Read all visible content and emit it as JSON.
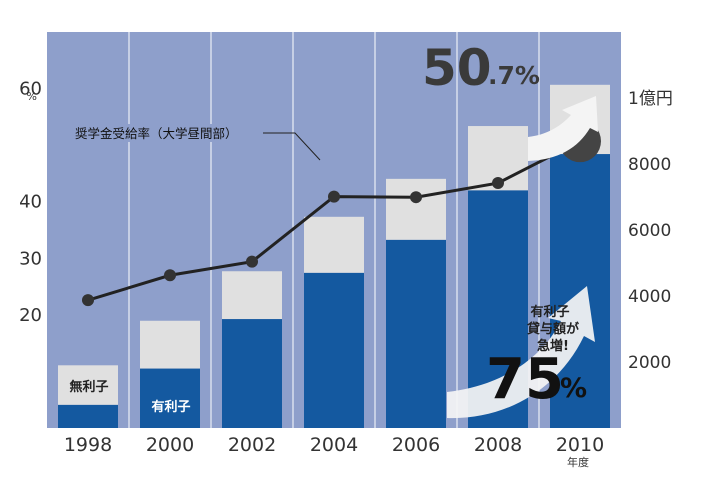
{
  "chart_data": {
    "type": "bar",
    "categories": [
      "1998",
      "2000",
      "2002",
      "2004",
      "2006",
      "2008",
      "2010"
    ],
    "x_unit": "年度",
    "colors": {
      "background": "#8e9fcb",
      "interest_free": "#e0e0e0",
      "interest_bearing": "#1459a0",
      "line": "#222222",
      "arrow": "#f4f4f4"
    },
    "bar_axis": {
      "ticks": [
        "2000",
        "4000",
        "6000",
        "8000",
        "1億円"
      ],
      "tick_values": [
        2000,
        4000,
        6000,
        8000,
        10000
      ],
      "ylim": [
        0,
        12000
      ]
    },
    "line_axis": {
      "ticks": [
        "20",
        "30",
        "40",
        "60"
      ],
      "tick_values": [
        20,
        30,
        40,
        60
      ],
      "unit": "%",
      "ylim": [
        0,
        70
      ]
    },
    "series": [
      {
        "name": "有利子",
        "type": "bar",
        "values": [
          700,
          1800,
          3300,
          4700,
          5700,
          7200,
          8300
        ]
      },
      {
        "name": "無利子",
        "type": "bar",
        "values": [
          1200,
          1450,
          1450,
          1700,
          1850,
          1950,
          2100
        ]
      },
      {
        "name": "奨学金受給率（大学昼間部）",
        "type": "line",
        "values": [
          22.6,
          27.0,
          29.4,
          40.9,
          40.8,
          43.3,
          50.7
        ]
      }
    ],
    "callout_line_value": "50",
    "callout_line_suffix": ".7%",
    "callout_bar_label": [
      "有利子",
      "貸与額が",
      "急増!"
    ],
    "callout_bar_value": "75",
    "callout_bar_suffix": "%"
  }
}
